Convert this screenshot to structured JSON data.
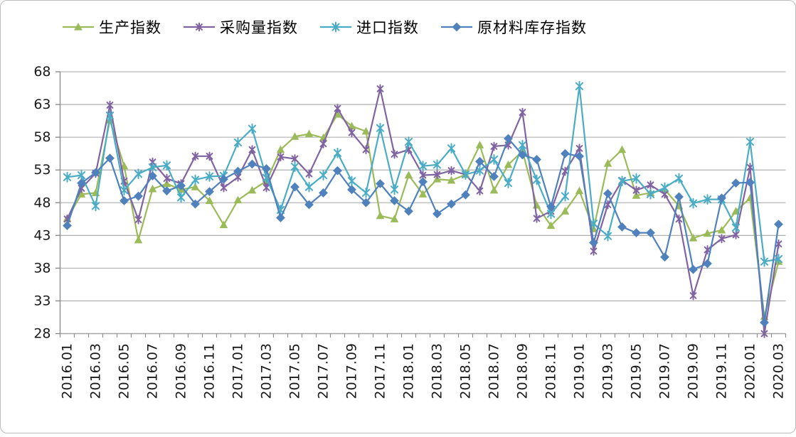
{
  "chart_data": {
    "type": "line",
    "title": "",
    "xlabel": "",
    "ylabel": "",
    "ylim": [
      28,
      68
    ],
    "yticks": [
      28,
      33,
      38,
      43,
      48,
      53,
      58,
      63,
      68
    ],
    "grid": "horizontal",
    "legend_position": "top",
    "x_label_interval": 2,
    "x": [
      "2016.01",
      "2016.02",
      "2016.03",
      "2016.04",
      "2016.05",
      "2016.06",
      "2016.07",
      "2016.08",
      "2016.09",
      "2016.10",
      "2016.11",
      "2016.12",
      "2017.01",
      "2017.02",
      "2017.03",
      "2017.04",
      "2017.05",
      "2017.06",
      "2017.07",
      "2017.08",
      "2017.09",
      "2017.10",
      "2017.11",
      "2017.12",
      "2018.01",
      "2018.02",
      "2018.03",
      "2018.04",
      "2018.05",
      "2018.06",
      "2018.07",
      "2018.08",
      "2018.09",
      "2018.10",
      "2018.11",
      "2018.12",
      "2019.01",
      "2019.02",
      "2019.03",
      "2019.04",
      "2019.05",
      "2019.06",
      "2019.07",
      "2019.08",
      "2019.09",
      "2019.10",
      "2019.11",
      "2019.12",
      "2020.01",
      "2020.02",
      "2020.03"
    ],
    "series": [
      {
        "name": "生产指数",
        "color": "#9BBB59",
        "marker": "triangle",
        "values": [
          45.6,
          49.3,
          49.5,
          60.6,
          53.6,
          42.3,
          50.1,
          50.9,
          50.0,
          50.4,
          48.3,
          44.6,
          48.4,
          49.9,
          51.3,
          56.1,
          58.1,
          58.5,
          57.9,
          61.5,
          59.7,
          58.9,
          46.0,
          45.5,
          52.2,
          49.3,
          51.6,
          51.4,
          52.3,
          56.8,
          49.9,
          53.8,
          55.9,
          47.6,
          44.5,
          46.7,
          49.8,
          44.0,
          54.0,
          56.1,
          49.1,
          49.5,
          50.0,
          47.5,
          42.6,
          43.3,
          43.8,
          46.7,
          48.7,
          30.6,
          39.0
        ]
      },
      {
        "name": "采购量指数",
        "color": "#8064A2",
        "marker": "star",
        "values": [
          45.5,
          50.2,
          52.5,
          62.9,
          51.3,
          45.4,
          54.2,
          51.7,
          50.9,
          55.1,
          55.1,
          50.3,
          51.9,
          56.1,
          50.3,
          55.0,
          54.7,
          52.4,
          57.0,
          62.4,
          58.7,
          56.1,
          65.4,
          55.4,
          56.1,
          52.2,
          52.3,
          52.9,
          52.3,
          49.8,
          56.6,
          56.8,
          61.8,
          45.6,
          46.7,
          52.8,
          56.3,
          40.6,
          47.7,
          51.4,
          49.9,
          50.7,
          49.3,
          45.5,
          33.8,
          40.8,
          42.5,
          43.1,
          53.4,
          28.0,
          41.7
        ]
      },
      {
        "name": "进口指数",
        "color": "#4BACC6",
        "marker": "asterisk",
        "values": [
          51.9,
          52.2,
          47.5,
          61.3,
          49.9,
          52.4,
          53.4,
          53.7,
          48.8,
          51.5,
          52.0,
          52.1,
          57.2,
          59.3,
          51.8,
          46.9,
          53.5,
          50.4,
          52.2,
          55.6,
          51.3,
          49.5,
          59.4,
          50.0,
          57.3,
          53.6,
          53.8,
          56.3,
          52.3,
          52.9,
          54.6,
          51.0,
          56.8,
          51.5,
          46.3,
          49.0,
          65.8,
          44.8,
          42.9,
          51.3,
          51.7,
          49.3,
          50.3,
          51.7,
          47.9,
          48.5,
          48.5,
          44.2,
          57.3,
          39.0,
          39.4
        ]
      },
      {
        "name": "原材料库存指数",
        "color": "#4F81BD",
        "marker": "diamond",
        "values": [
          44.5,
          51.0,
          52.6,
          54.8,
          48.3,
          49.0,
          52.1,
          49.8,
          50.6,
          47.8,
          49.7,
          51.6,
          52.8,
          53.9,
          53.2,
          45.7,
          50.4,
          47.7,
          49.5,
          52.9,
          50.0,
          48.0,
          50.9,
          48.3,
          46.7,
          51.2,
          46.3,
          47.8,
          49.2,
          54.3,
          52.0,
          57.8,
          55.3,
          54.6,
          47.4,
          55.5,
          55.1,
          41.9,
          49.4,
          44.3,
          43.4,
          43.4,
          39.7,
          48.9,
          37.8,
          38.7,
          48.7,
          51.0,
          51.1,
          29.7,
          44.7
        ]
      }
    ],
    "axis_color": "#8c8c8c",
    "grid_color": "#a6a6a6",
    "text_color": "#1a1a1a"
  }
}
